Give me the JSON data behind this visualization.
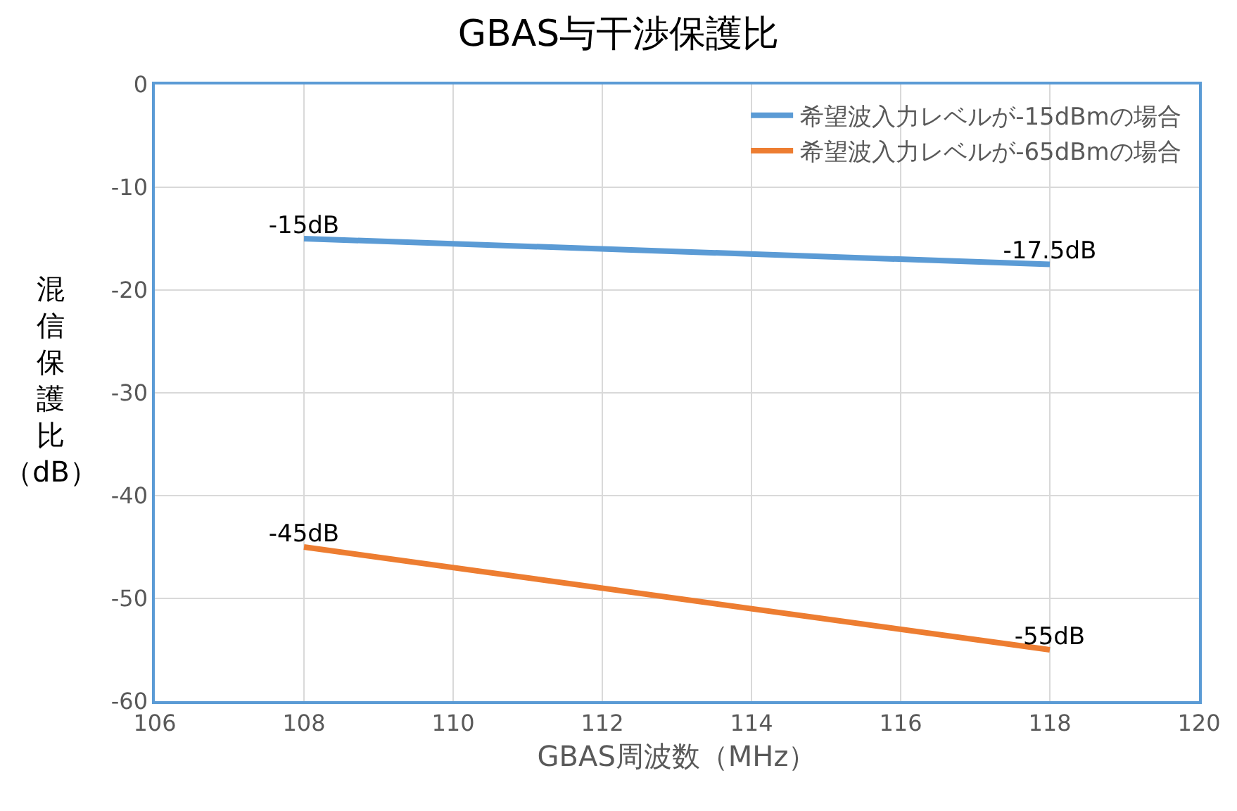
{
  "chart_data": {
    "type": "line",
    "title": "GBAS与干渉保護比",
    "xlabel": "GBAS周波数（MHz）",
    "ylabel": "混信保護比（dB）",
    "x": [
      108,
      118
    ],
    "series": [
      {
        "name": "希望波入力レベルが-15dBmの場合",
        "color": "#5b9bd5",
        "values": [
          -15,
          -17.5
        ],
        "value_labels": [
          "-15dB",
          "-17.5dB"
        ]
      },
      {
        "name": "希望波入力レベルが-65dBmの場合",
        "color": "#ed7d31",
        "values": [
          -45,
          -55
        ],
        "value_labels": [
          "-45dB",
          "-55dB"
        ]
      }
    ],
    "xlim": [
      106,
      120
    ],
    "xticks": [
      106,
      108,
      110,
      112,
      114,
      116,
      118,
      120
    ],
    "ylim": [
      -60,
      0
    ],
    "yticks": [
      -60,
      -50,
      -40,
      -30,
      -20,
      -10,
      0
    ],
    "grid": true,
    "legend": "top right",
    "marker": "none",
    "line_style": "solid"
  }
}
